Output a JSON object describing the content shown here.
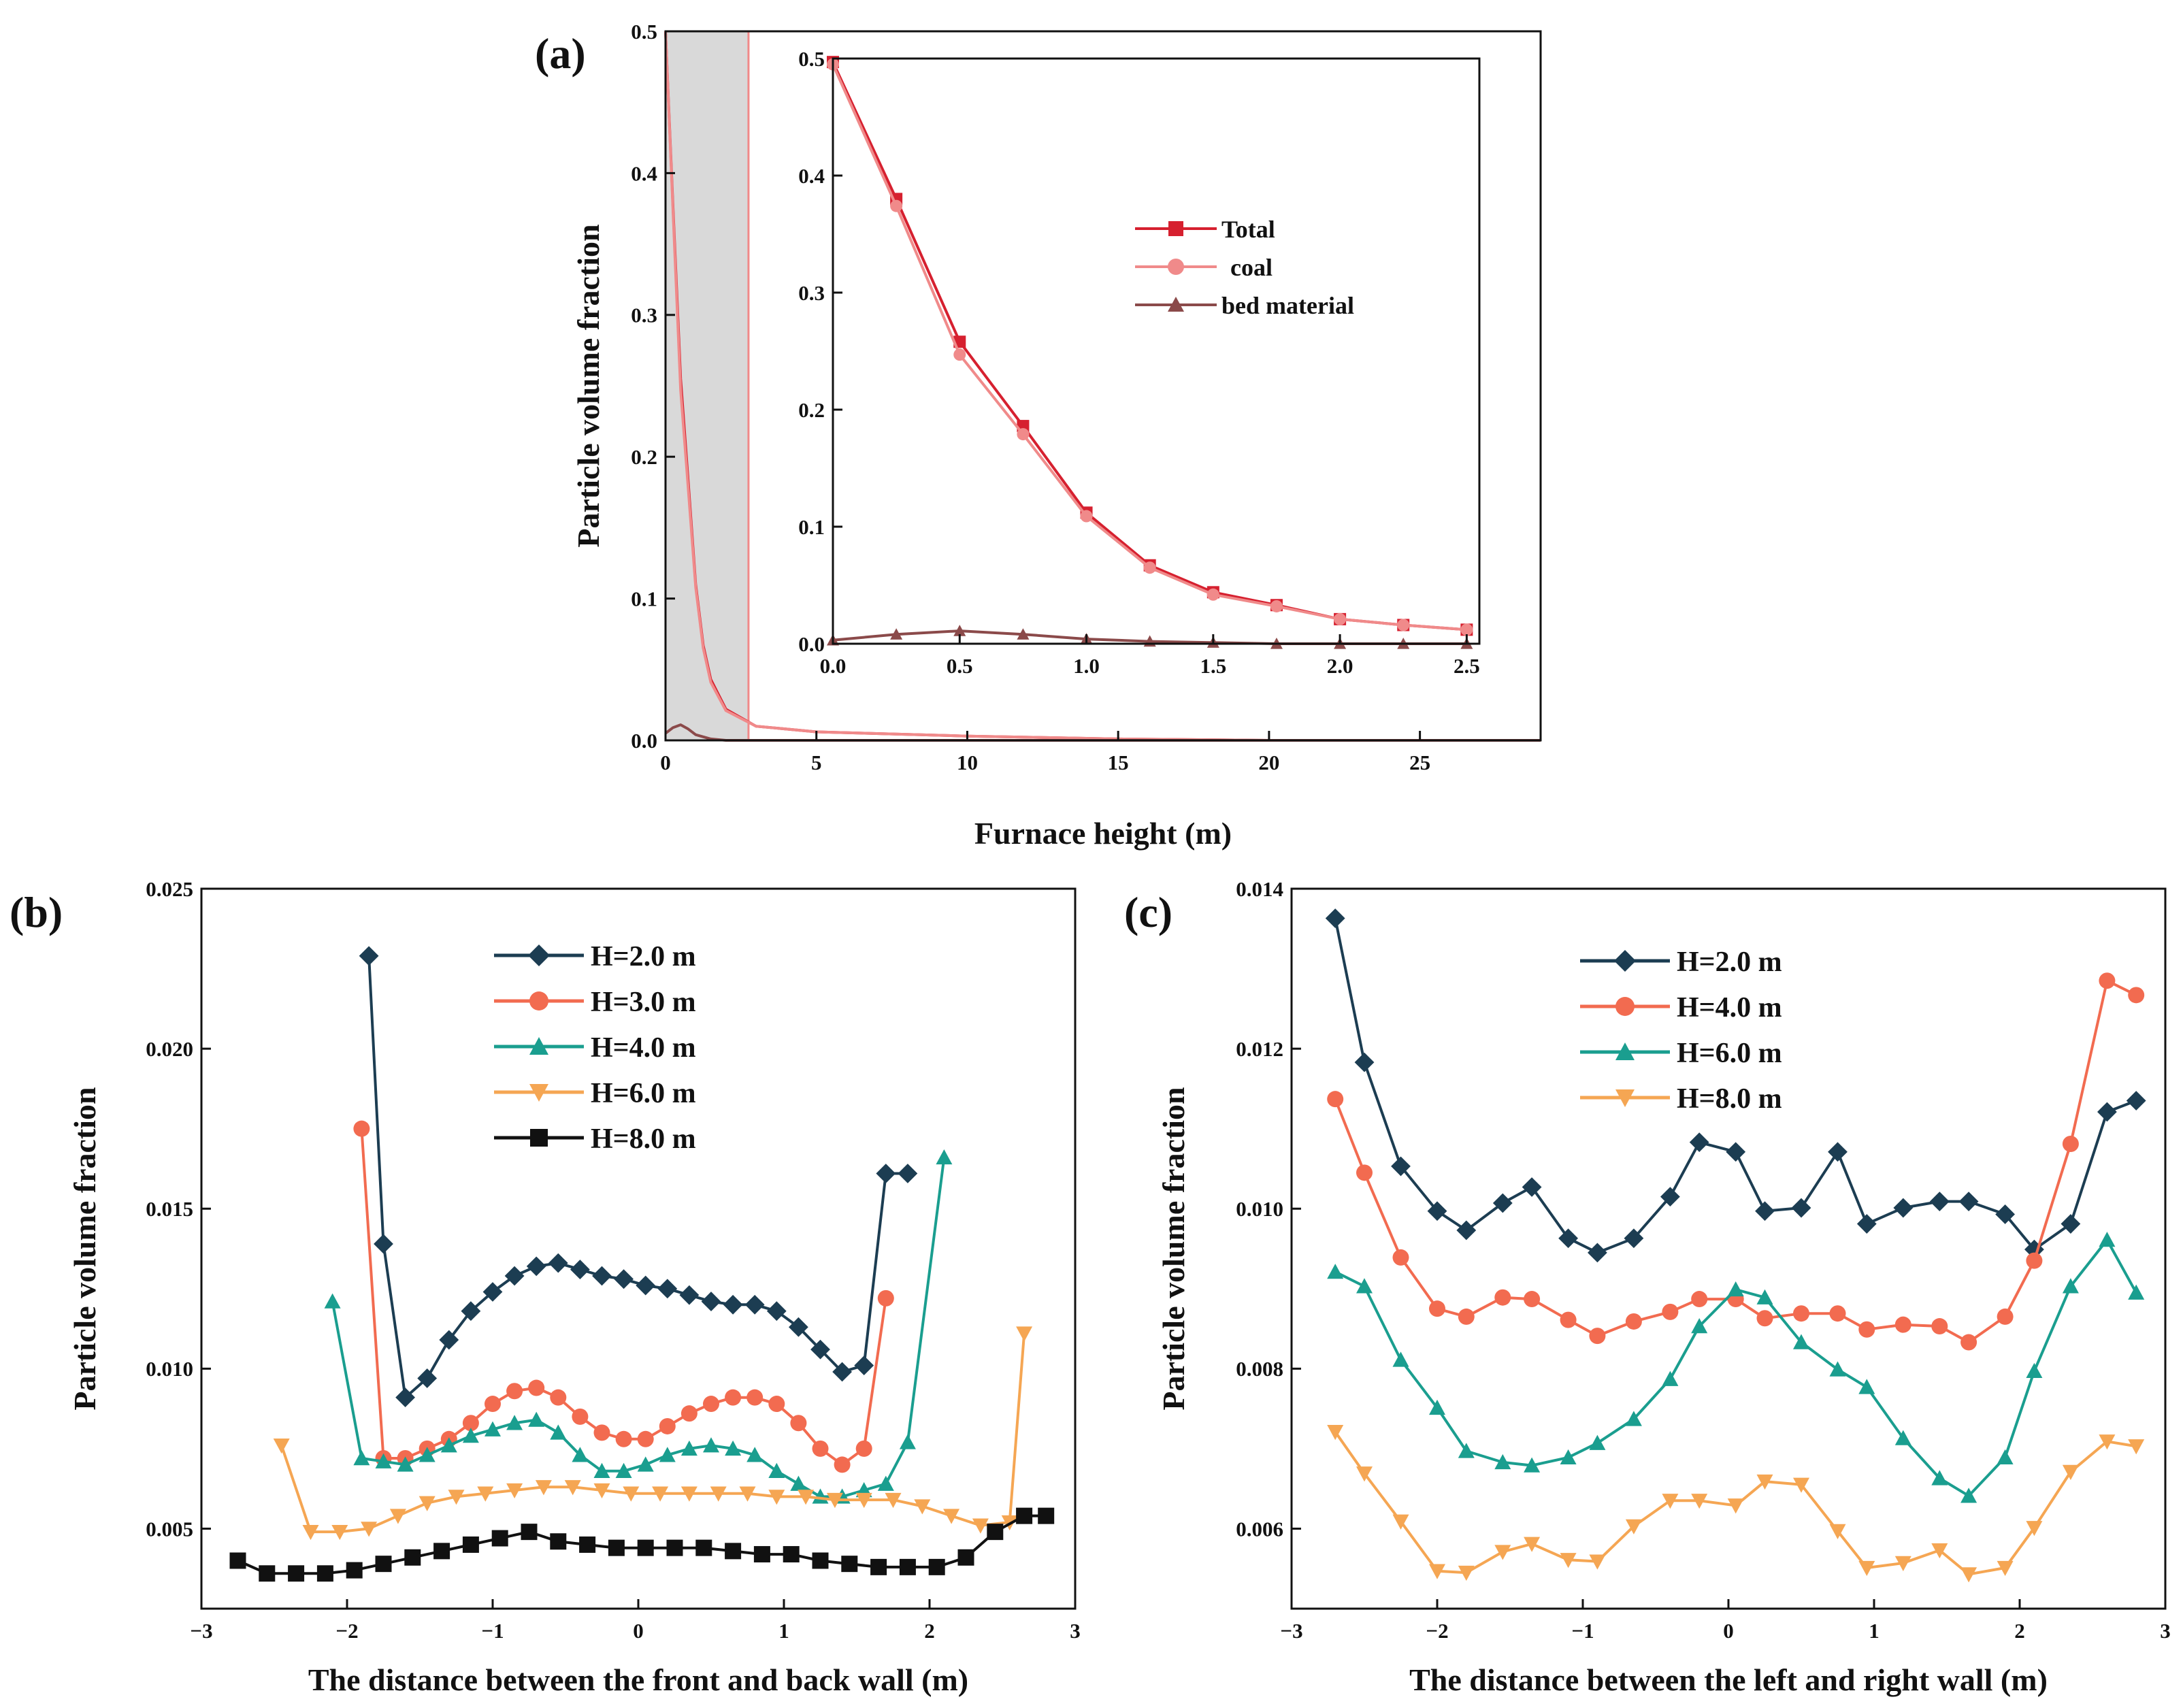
{
  "chart_data": [
    {
      "id": "a",
      "type": "line",
      "panel_label": "(a)",
      "xlabel": "Furnace height (m)",
      "ylabel": "Particle volume fraction",
      "xlim": [
        0,
        29
      ],
      "ylim": [
        0,
        0.5
      ],
      "xticks": [
        0,
        5,
        10,
        15,
        20,
        25
      ],
      "yticks": [
        0.0,
        0.1,
        0.2,
        0.3,
        0.4,
        0.5
      ],
      "xtick_labels": [
        "0",
        "5",
        "10",
        "15",
        "20",
        "25"
      ],
      "ytick_labels": [
        "0.0",
        "0.1",
        "0.2",
        "0.3",
        "0.4",
        "0.5"
      ],
      "highlight_range": [
        0,
        2.75
      ],
      "series": [
        {
          "name": "Total",
          "color": "#d6202f",
          "x": [
            0,
            0.25,
            0.5,
            0.75,
            1.0,
            1.25,
            1.5,
            2.0,
            3,
            5,
            10,
            15,
            20,
            25,
            29
          ],
          "y": [
            0.5,
            0.375,
            0.255,
            0.183,
            0.11,
            0.067,
            0.043,
            0.022,
            0.01,
            0.006,
            0.003,
            0.001,
            0.0,
            0.0,
            0.0
          ]
        },
        {
          "name": "coal",
          "color": "#f08a8a",
          "x": [
            0,
            0.25,
            0.5,
            0.75,
            1.0,
            1.25,
            1.5,
            2.0,
            3,
            5,
            10,
            15,
            20,
            25,
            29
          ],
          "y": [
            0.5,
            0.372,
            0.247,
            0.178,
            0.108,
            0.065,
            0.041,
            0.021,
            0.01,
            0.006,
            0.003,
            0.001,
            0.0,
            0.0,
            0.0
          ]
        },
        {
          "name": "bed material",
          "color": "#8b4a4a",
          "x": [
            0,
            0.25,
            0.5,
            0.75,
            1.0,
            1.5,
            2.0,
            3,
            29
          ],
          "y": [
            0.005,
            0.009,
            0.011,
            0.008,
            0.004,
            0.001,
            0.0,
            0.0,
            0.0
          ]
        }
      ],
      "inset": {
        "xlim": [
          0,
          2.55
        ],
        "ylim": [
          0,
          0.5
        ],
        "xticks": [
          0.0,
          0.5,
          1.0,
          1.5,
          2.0,
          2.5
        ],
        "yticks": [
          0.0,
          0.1,
          0.2,
          0.3,
          0.4,
          0.5
        ],
        "xtick_labels": [
          "0.0",
          "0.5",
          "1.0",
          "1.5",
          "2.0",
          "2.5"
        ],
        "ytick_labels": [
          "0.0",
          "0.1",
          "0.2",
          "0.3",
          "0.4",
          "0.5"
        ],
        "legend": [
          "Total",
          "coal",
          "bed material"
        ],
        "series": [
          {
            "name": "Total",
            "color": "#d6202f",
            "marker": "square",
            "x": [
              0.0,
              0.25,
              0.5,
              0.75,
              1.0,
              1.25,
              1.5,
              1.75,
              2.0,
              2.25,
              2.5
            ],
            "y": [
              0.497,
              0.38,
              0.258,
              0.186,
              0.112,
              0.067,
              0.044,
              0.033,
              0.021,
              0.016,
              0.012
            ]
          },
          {
            "name": "coal",
            "color": "#f08a8a",
            "marker": "circle",
            "x": [
              0.0,
              0.25,
              0.5,
              0.75,
              1.0,
              1.25,
              1.5,
              1.75,
              2.0,
              2.25,
              2.5
            ],
            "y": [
              0.495,
              0.374,
              0.247,
              0.179,
              0.109,
              0.065,
              0.042,
              0.032,
              0.021,
              0.016,
              0.012
            ]
          },
          {
            "name": "bed material",
            "color": "#8b4a4a",
            "marker": "triangle",
            "x": [
              0.0,
              0.25,
              0.5,
              0.75,
              1.0,
              1.25,
              1.5,
              1.75,
              2.0,
              2.25,
              2.5
            ],
            "y": [
              0.003,
              0.008,
              0.011,
              0.008,
              0.004,
              0.002,
              0.001,
              0.0,
              0.0,
              0.0,
              0.0
            ]
          }
        ]
      }
    },
    {
      "id": "b",
      "type": "line",
      "panel_label": "(b)",
      "xlabel": "The distance between the front  and back wall (m)",
      "ylabel": "Particle volume fraction",
      "xlim": [
        -3,
        3
      ],
      "ylim": [
        0.0025,
        0.025
      ],
      "xticks": [
        -3,
        -2,
        -1,
        0,
        1,
        2,
        3
      ],
      "yticks": [
        0.005,
        0.01,
        0.015,
        0.02,
        0.025
      ],
      "xtick_labels": [
        "−3",
        "−2",
        "−1",
        "0",
        "1",
        "2",
        "3"
      ],
      "ytick_labels": [
        "0.005",
        "0.010",
        "0.015",
        "0.020",
        "0.025"
      ],
      "legend": [
        "H=2.0  m",
        "H=3.0  m",
        "H=4.0  m",
        "H=6.0  m",
        "H=8.0  m"
      ],
      "series": [
        {
          "name": "H=2.0  m",
          "color": "#1c3d52",
          "marker": "diamond",
          "x": [
            -1.85,
            -1.75,
            -1.6,
            -1.45,
            -1.3,
            -1.15,
            -1.0,
            -0.85,
            -0.7,
            -0.55,
            -0.4,
            -0.25,
            -0.1,
            0.05,
            0.2,
            0.35,
            0.5,
            0.65,
            0.8,
            0.95,
            1.1,
            1.25,
            1.4,
            1.55,
            1.7,
            1.85
          ],
          "y": [
            0.0229,
            0.0139,
            0.0091,
            0.0097,
            0.0109,
            0.0118,
            0.0124,
            0.0129,
            0.0132,
            0.0133,
            0.0131,
            0.0129,
            0.0128,
            0.0126,
            0.0125,
            0.0123,
            0.0121,
            0.012,
            0.012,
            0.0118,
            0.0113,
            0.0106,
            0.0099,
            0.0101,
            0.0161,
            0.0161
          ]
        },
        {
          "name": "H=3.0  m",
          "color": "#f26b50",
          "marker": "circle",
          "x": [
            -1.9,
            -1.75,
            -1.6,
            -1.45,
            -1.3,
            -1.15,
            -1.0,
            -0.85,
            -0.7,
            -0.55,
            -0.4,
            -0.25,
            -0.1,
            0.05,
            0.2,
            0.35,
            0.5,
            0.65,
            0.8,
            0.95,
            1.1,
            1.25,
            1.4,
            1.55,
            1.7
          ],
          "y": [
            0.0175,
            0.0072,
            0.0072,
            0.0075,
            0.0078,
            0.0083,
            0.0089,
            0.0093,
            0.0094,
            0.0091,
            0.0085,
            0.008,
            0.0078,
            0.0078,
            0.0082,
            0.0086,
            0.0089,
            0.0091,
            0.0091,
            0.0089,
            0.0083,
            0.0075,
            0.007,
            0.0075,
            0.0122
          ]
        },
        {
          "name": "H=4.0  m",
          "color": "#1a9e8f",
          "marker": "triangle",
          "x": [
            -2.1,
            -1.9,
            -1.75,
            -1.6,
            -1.45,
            -1.3,
            -1.15,
            -1.0,
            -0.85,
            -0.7,
            -0.55,
            -0.4,
            -0.25,
            -0.1,
            0.05,
            0.2,
            0.35,
            0.5,
            0.65,
            0.8,
            0.95,
            1.1,
            1.25,
            1.4,
            1.55,
            1.7,
            1.85,
            2.1
          ],
          "y": [
            0.0121,
            0.0072,
            0.0071,
            0.007,
            0.0073,
            0.0076,
            0.0079,
            0.0081,
            0.0083,
            0.0084,
            0.008,
            0.0073,
            0.0068,
            0.0068,
            0.007,
            0.0073,
            0.0075,
            0.0076,
            0.0075,
            0.0073,
            0.0068,
            0.0064,
            0.006,
            0.006,
            0.0062,
            0.0064,
            0.0077,
            0.0166
          ]
        },
        {
          "name": "H=6.0  m",
          "color": "#f5a653",
          "marker": "triangle-down",
          "x": [
            -2.45,
            -2.25,
            -2.05,
            -1.85,
            -1.65,
            -1.45,
            -1.25,
            -1.05,
            -0.85,
            -0.65,
            -0.45,
            -0.25,
            -0.05,
            0.15,
            0.35,
            0.55,
            0.75,
            0.95,
            1.15,
            1.35,
            1.55,
            1.75,
            1.95,
            2.15,
            2.35,
            2.55,
            2.65
          ],
          "y": [
            0.0076,
            0.0049,
            0.0049,
            0.005,
            0.0054,
            0.0058,
            0.006,
            0.0061,
            0.0062,
            0.0063,
            0.0063,
            0.0062,
            0.0061,
            0.0061,
            0.0061,
            0.0061,
            0.0061,
            0.006,
            0.006,
            0.0059,
            0.0059,
            0.0059,
            0.0057,
            0.0054,
            0.0051,
            0.0052,
            0.0111
          ]
        },
        {
          "name": "H=8.0  m",
          "color": "#111111",
          "marker": "square",
          "x": [
            -2.75,
            -2.55,
            -2.35,
            -2.15,
            -1.95,
            -1.75,
            -1.55,
            -1.35,
            -1.15,
            -0.95,
            -0.75,
            -0.55,
            -0.35,
            -0.15,
            0.05,
            0.25,
            0.45,
            0.65,
            0.85,
            1.05,
            1.25,
            1.45,
            1.65,
            1.85,
            2.05,
            2.25,
            2.45,
            2.65,
            2.8
          ],
          "y": [
            0.004,
            0.0036,
            0.0036,
            0.0036,
            0.0037,
            0.0039,
            0.0041,
            0.0043,
            0.0045,
            0.0047,
            0.0049,
            0.0046,
            0.0045,
            0.0044,
            0.0044,
            0.0044,
            0.0044,
            0.0043,
            0.0042,
            0.0042,
            0.004,
            0.0039,
            0.0038,
            0.0038,
            0.0038,
            0.0041,
            0.0049,
            0.0054,
            0.0054
          ]
        }
      ]
    },
    {
      "id": "c",
      "type": "line",
      "panel_label": "(c)",
      "xlabel": "The distance between the left  and right wall (m)",
      "ylabel": "Particle volume fraction",
      "xlim": [
        -3,
        3
      ],
      "ylim": [
        0.005,
        0.014
      ],
      "xticks": [
        -3,
        -2,
        -1,
        0,
        1,
        2,
        3
      ],
      "yticks": [
        0.006,
        0.008,
        0.01,
        0.012,
        0.014
      ],
      "xtick_labels": [
        "−3",
        "−2",
        "−1",
        "0",
        "1",
        "2",
        "3"
      ],
      "ytick_labels": [
        "0.006",
        "0.008",
        "0.010",
        "0.012",
        "0.014"
      ],
      "legend": [
        "H=2.0  m",
        "H=4.0  m",
        "H=6.0  m",
        "H=8.0  m"
      ],
      "series": [
        {
          "name": "H=2.0  m",
          "color": "#1c3d52",
          "marker": "diamond",
          "x": [
            -2.7,
            -2.5,
            -2.25,
            -2.0,
            -1.8,
            -1.55,
            -1.35,
            -1.1,
            -0.9,
            -0.65,
            -0.4,
            -0.2,
            0.05,
            0.25,
            0.5,
            0.75,
            0.95,
            1.2,
            1.45,
            1.65,
            1.9,
            2.1,
            2.35,
            2.6,
            2.8
          ],
          "y": [
            0.01363,
            0.01183,
            0.01053,
            0.00997,
            0.00973,
            0.01007,
            0.01027,
            0.00963,
            0.00945,
            0.00963,
            0.01015,
            0.01083,
            0.01071,
            0.00997,
            0.01001,
            0.01071,
            0.00981,
            0.01001,
            0.01009,
            0.01009,
            0.00993,
            0.00949,
            0.00981,
            0.01121,
            0.01135
          ]
        },
        {
          "name": "H=4.0  m",
          "color": "#f26b50",
          "marker": "circle",
          "x": [
            -2.7,
            -2.5,
            -2.25,
            -2.0,
            -1.8,
            -1.55,
            -1.35,
            -1.1,
            -0.9,
            -0.65,
            -0.4,
            -0.2,
            0.05,
            0.25,
            0.5,
            0.75,
            0.95,
            1.2,
            1.45,
            1.65,
            1.9,
            2.1,
            2.35,
            2.6,
            2.8
          ],
          "y": [
            0.01137,
            0.01045,
            0.00939,
            0.00875,
            0.00865,
            0.00889,
            0.00887,
            0.00861,
            0.00841,
            0.00859,
            0.00871,
            0.00887,
            0.00887,
            0.00863,
            0.00869,
            0.00869,
            0.00849,
            0.00855,
            0.00853,
            0.00833,
            0.00865,
            0.00935,
            0.01081,
            0.01285,
            0.01267
          ]
        },
        {
          "name": "H=6.0  m",
          "color": "#1a9e8f",
          "marker": "triangle",
          "x": [
            -2.7,
            -2.5,
            -2.25,
            -2.0,
            -1.8,
            -1.55,
            -1.35,
            -1.1,
            -0.9,
            -0.65,
            -0.4,
            -0.2,
            0.05,
            0.25,
            0.5,
            0.75,
            0.95,
            1.2,
            1.45,
            1.65,
            1.9,
            2.1,
            2.35,
            2.6,
            2.8
          ],
          "y": [
            0.00921,
            0.00903,
            0.00811,
            0.00751,
            0.00697,
            0.00683,
            0.00679,
            0.00689,
            0.00707,
            0.00737,
            0.00787,
            0.00853,
            0.00899,
            0.00889,
            0.00833,
            0.00799,
            0.00777,
            0.00713,
            0.00663,
            0.00641,
            0.00689,
            0.00797,
            0.00903,
            0.00961,
            0.00895
          ]
        },
        {
          "name": "H=8.0  m",
          "color": "#f5a653",
          "marker": "triangle-down",
          "x": [
            -2.7,
            -2.5,
            -2.25,
            -2.0,
            -1.8,
            -1.55,
            -1.35,
            -1.1,
            -0.9,
            -0.65,
            -0.4,
            -0.2,
            0.05,
            0.25,
            0.5,
            0.75,
            0.95,
            1.2,
            1.45,
            1.65,
            1.9,
            2.1,
            2.35,
            2.6,
            2.8
          ],
          "y": [
            0.00721,
            0.00669,
            0.00609,
            0.00547,
            0.00545,
            0.00571,
            0.00581,
            0.00561,
            0.00559,
            0.00603,
            0.00635,
            0.00635,
            0.00629,
            0.00659,
            0.00655,
            0.00597,
            0.00551,
            0.00557,
            0.00573,
            0.00543,
            0.00551,
            0.00601,
            0.00671,
            0.00709,
            0.00703
          ]
        }
      ]
    }
  ]
}
